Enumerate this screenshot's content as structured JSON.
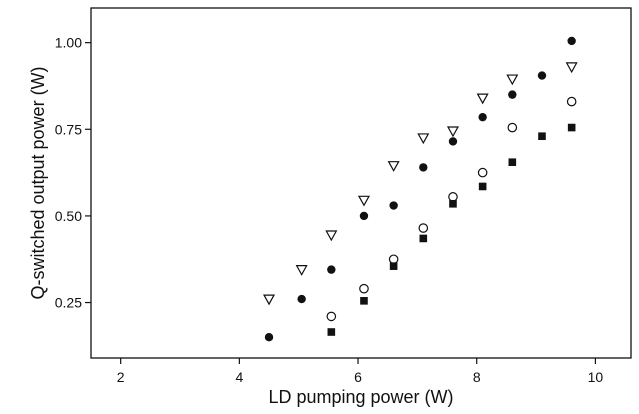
{
  "chart_data": {
    "type": "scatter",
    "title": "",
    "xlabel": "LD pumping power (W)",
    "ylabel": "Q-switched output power (W)",
    "xlim": [
      1.5,
      10.6
    ],
    "ylim": [
      0.09,
      1.1
    ],
    "xticks": [
      2,
      4,
      6,
      8,
      10
    ],
    "xtick_labels": [
      "2",
      "4",
      "6",
      "8",
      "10"
    ],
    "yticks": [
      0.25,
      0.5,
      0.75,
      1.0
    ],
    "ytick_labels": [
      "0.25",
      "0.50",
      "0.75",
      "1.00"
    ],
    "grid": false,
    "legend": "none",
    "series": [
      {
        "marker": "open-triangle-down",
        "color": "#111111",
        "points": [
          [
            4.5,
            0.26
          ],
          [
            5.05,
            0.345
          ],
          [
            5.55,
            0.445
          ],
          [
            6.1,
            0.545
          ],
          [
            6.6,
            0.645
          ],
          [
            7.1,
            0.725
          ],
          [
            7.6,
            0.745
          ],
          [
            8.1,
            0.84
          ],
          [
            8.6,
            0.895
          ],
          [
            9.6,
            0.93
          ]
        ]
      },
      {
        "marker": "filled-circle",
        "color": "#111111",
        "points": [
          [
            4.5,
            0.15
          ],
          [
            5.05,
            0.26
          ],
          [
            5.55,
            0.345
          ],
          [
            6.1,
            0.5
          ],
          [
            6.6,
            0.53
          ],
          [
            7.1,
            0.64
          ],
          [
            7.6,
            0.715
          ],
          [
            8.1,
            0.785
          ],
          [
            8.6,
            0.85
          ],
          [
            9.1,
            0.905
          ],
          [
            9.6,
            1.005
          ]
        ]
      },
      {
        "marker": "open-circle",
        "color": "#111111",
        "points": [
          [
            5.55,
            0.21
          ],
          [
            6.1,
            0.29
          ],
          [
            6.6,
            0.375
          ],
          [
            7.1,
            0.465
          ],
          [
            7.6,
            0.555
          ],
          [
            8.1,
            0.625
          ],
          [
            8.6,
            0.755
          ],
          [
            9.6,
            0.83
          ]
        ]
      },
      {
        "marker": "filled-square",
        "color": "#111111",
        "points": [
          [
            5.55,
            0.165
          ],
          [
            6.1,
            0.255
          ],
          [
            6.6,
            0.355
          ],
          [
            7.1,
            0.435
          ],
          [
            7.6,
            0.535
          ],
          [
            8.1,
            0.585
          ],
          [
            8.6,
            0.655
          ],
          [
            9.1,
            0.73
          ],
          [
            9.6,
            0.755
          ]
        ]
      }
    ]
  }
}
